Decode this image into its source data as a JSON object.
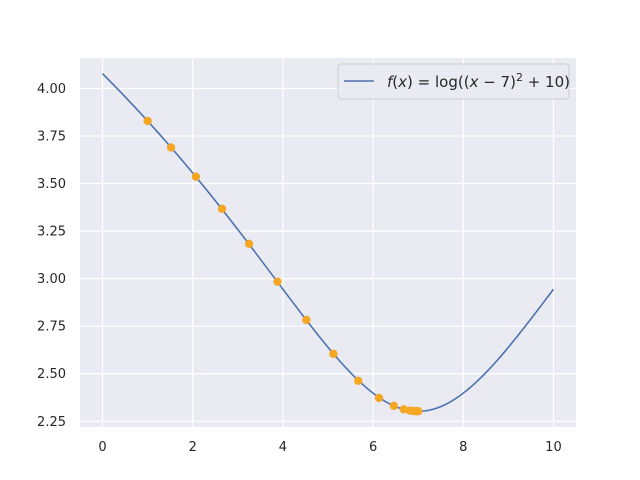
{
  "chart_data": {
    "type": "line",
    "function": "log((x-7)^2+10)",
    "xlim": [
      -0.5,
      10.5
    ],
    "ylim": [
      2.22,
      4.16
    ],
    "xticks": [
      0,
      2,
      4,
      6,
      8,
      10
    ],
    "yticks": [
      2.25,
      2.5,
      2.75,
      3.0,
      3.25,
      3.5,
      3.75,
      4.0
    ],
    "xtick_labels": [
      "0",
      "2",
      "4",
      "6",
      "8",
      "10"
    ],
    "ytick_labels": [
      "2.25",
      "2.50",
      "2.75",
      "3.00",
      "3.25",
      "3.50",
      "3.75",
      "4.00"
    ],
    "grid": true,
    "legend_position": "top-right",
    "colors": {
      "background": "#eaeaf2",
      "grid": "#ffffff",
      "line": "#4c72b0",
      "points": "#f5a623"
    },
    "series": [
      {
        "name": "f(x) = log((x − 7)² + 10)",
        "kind": "line",
        "x_range": [
          0,
          10
        ],
        "samples": 200
      },
      {
        "kind": "scatter",
        "x": [
          1.0,
          1.52,
          2.07,
          2.65,
          3.25,
          3.88,
          4.52,
          5.12,
          5.67,
          6.13,
          6.46,
          6.68,
          6.82,
          6.9,
          6.95,
          6.98,
          7.0
        ],
        "y": [
          3.829,
          3.689,
          3.536,
          3.367,
          3.183,
          2.984,
          2.783,
          2.605,
          2.463,
          2.373,
          2.331,
          2.313,
          2.306,
          2.304,
          2.303,
          2.303,
          2.303
        ]
      }
    ],
    "legend": {
      "entries": [
        {
          "label": "f(x) = log((x − 7)² + 10)",
          "color": "#4c72b0"
        }
      ]
    }
  }
}
